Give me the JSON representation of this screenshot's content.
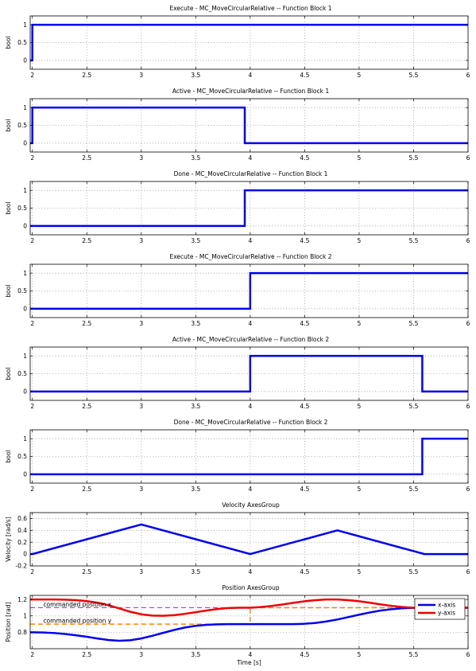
{
  "chart_data": [
    {
      "type": "line",
      "title": "Execute - MC_MoveCircularRelative -- Function Block 1",
      "ylabel": "bool",
      "xlabel": "",
      "xlim": [
        1.98,
        6
      ],
      "ylim": [
        -0.25,
        1.25
      ],
      "xticks": [
        2,
        2.5,
        3,
        3.5,
        4,
        4.5,
        5,
        5.5,
        6
      ],
      "xtick_labels": [
        "2",
        "2.5",
        "3",
        "3.5",
        "4",
        "4.5",
        "5",
        "5.5",
        "6"
      ],
      "yticks": [
        0,
        0.5,
        1
      ],
      "ytick_labels": [
        "0",
        "0.5",
        "1"
      ],
      "grid": true,
      "series": [
        {
          "color": "#0000ee",
          "width": 2.5,
          "x": [
            1.98,
            2.0,
            2.0,
            6.0
          ],
          "y": [
            0,
            0,
            1,
            1
          ]
        }
      ]
    },
    {
      "type": "line",
      "title": "Active - MC_MoveCircularRelative -- Function Block 1",
      "ylabel": "bool",
      "xlabel": "",
      "xlim": [
        1.98,
        6
      ],
      "ylim": [
        -0.25,
        1.25
      ],
      "xticks": [
        2,
        2.5,
        3,
        3.5,
        4,
        4.5,
        5,
        5.5,
        6
      ],
      "xtick_labels": [
        "2",
        "2.5",
        "3",
        "3.5",
        "4",
        "4.5",
        "5",
        "5.5",
        "6"
      ],
      "yticks": [
        0,
        0.5,
        1
      ],
      "ytick_labels": [
        "0",
        "0.5",
        "1"
      ],
      "grid": true,
      "series": [
        {
          "color": "#0000ee",
          "width": 2.5,
          "x": [
            1.98,
            2.0,
            2.0,
            3.95,
            3.95,
            6.0
          ],
          "y": [
            0,
            0,
            1,
            1,
            0,
            0
          ]
        }
      ]
    },
    {
      "type": "line",
      "title": "Done - MC_MoveCircularRelative -- Function Block 1",
      "ylabel": "bool",
      "xlabel": "",
      "xlim": [
        1.98,
        6
      ],
      "ylim": [
        -0.25,
        1.25
      ],
      "xticks": [
        2,
        2.5,
        3,
        3.5,
        4,
        4.5,
        5,
        5.5,
        6
      ],
      "xtick_labels": [
        "2",
        "2.5",
        "3",
        "3.5",
        "4",
        "4.5",
        "5",
        "5.5",
        "6"
      ],
      "yticks": [
        0,
        0.5,
        1
      ],
      "ytick_labels": [
        "0",
        "0.5",
        "1"
      ],
      "grid": true,
      "series": [
        {
          "color": "#0000ee",
          "width": 2.5,
          "x": [
            1.98,
            3.95,
            3.95,
            6.0
          ],
          "y": [
            0,
            0,
            1,
            1
          ]
        }
      ]
    },
    {
      "type": "line",
      "title": "Execute - MC_MoveCircularRelative -- Function Block 2",
      "ylabel": "bool",
      "xlabel": "",
      "xlim": [
        1.98,
        6
      ],
      "ylim": [
        -0.25,
        1.25
      ],
      "xticks": [
        2,
        2.5,
        3,
        3.5,
        4,
        4.5,
        5,
        5.5,
        6
      ],
      "xtick_labels": [
        "2",
        "2.5",
        "3",
        "3.5",
        "4",
        "4.5",
        "5",
        "5.5",
        "6"
      ],
      "yticks": [
        0,
        0.5,
        1
      ],
      "ytick_labels": [
        "0",
        "0.5",
        "1"
      ],
      "grid": true,
      "series": [
        {
          "color": "#0000ee",
          "width": 2.5,
          "x": [
            1.98,
            4.0,
            4.0,
            6.0
          ],
          "y": [
            0,
            0,
            1,
            1
          ]
        }
      ]
    },
    {
      "type": "line",
      "title": "Active - MC_MoveCircularRelative -- Function Block 2",
      "ylabel": "bool",
      "xlabel": "",
      "xlim": [
        1.98,
        6
      ],
      "ylim": [
        -0.25,
        1.25
      ],
      "xticks": [
        2,
        2.5,
        3,
        3.5,
        4,
        4.5,
        5,
        5.5,
        6
      ],
      "xtick_labels": [
        "2",
        "2.5",
        "3",
        "3.5",
        "4",
        "4.5",
        "5",
        "5.5",
        "6"
      ],
      "yticks": [
        0,
        0.5,
        1
      ],
      "ytick_labels": [
        "0",
        "0.5",
        "1"
      ],
      "grid": true,
      "series": [
        {
          "color": "#0000ee",
          "width": 2.5,
          "x": [
            1.98,
            4.0,
            4.0,
            5.58,
            5.58,
            6.0
          ],
          "y": [
            0,
            0,
            1,
            1,
            0,
            0
          ]
        }
      ]
    },
    {
      "type": "line",
      "title": "Done - MC_MoveCircularRelative -- Function Block 2",
      "ylabel": "bool",
      "xlabel": "",
      "xlim": [
        1.98,
        6
      ],
      "ylim": [
        -0.25,
        1.25
      ],
      "xticks": [
        2,
        2.5,
        3,
        3.5,
        4,
        4.5,
        5,
        5.5,
        6
      ],
      "xtick_labels": [
        "2",
        "2.5",
        "3",
        "3.5",
        "4",
        "4.5",
        "5",
        "5.5",
        "6"
      ],
      "yticks": [
        0,
        0.5,
        1
      ],
      "ytick_labels": [
        "0",
        "0.5",
        "1"
      ],
      "grid": true,
      "series": [
        {
          "color": "#0000ee",
          "width": 2.5,
          "x": [
            1.98,
            5.58,
            5.58,
            6.0
          ],
          "y": [
            0,
            0,
            1,
            1
          ]
        }
      ]
    },
    {
      "type": "line",
      "title": "Velocity AxesGroup",
      "ylabel": "Velocity [rad/s]",
      "xlabel": "",
      "xlim": [
        1.98,
        6
      ],
      "ylim": [
        -0.2,
        0.7
      ],
      "xticks": [
        2,
        2.5,
        3,
        3.5,
        4,
        4.5,
        5,
        5.5,
        6
      ],
      "xtick_labels": [
        "2",
        "2.5",
        "3",
        "3.5",
        "4",
        "4.5",
        "5",
        "5.5",
        "6"
      ],
      "yticks": [
        -0.2,
        0,
        0.2,
        0.4,
        0.6
      ],
      "ytick_labels": [
        "-0.2",
        "0",
        "0.2",
        "0.4",
        "0.6"
      ],
      "grid": true,
      "series": [
        {
          "color": "#0000ee",
          "width": 2.5,
          "x": [
            1.98,
            2.0,
            3.0,
            4.0,
            4.8,
            5.6,
            6.0
          ],
          "y": [
            0,
            0,
            0.5,
            0,
            0.4,
            0,
            0
          ]
        }
      ]
    },
    {
      "type": "line",
      "title": "Position AxesGroup",
      "ylabel": "Position [rad]",
      "xlabel": "Time [s]",
      "xlim": [
        1.98,
        6
      ],
      "ylim": [
        0.6,
        1.25
      ],
      "xticks": [
        2,
        2.5,
        3,
        3.5,
        4,
        4.5,
        5,
        5.5,
        6
      ],
      "xtick_labels": [
        "2",
        "2.5",
        "3",
        "3.5",
        "4",
        "4.5",
        "5",
        "5.5",
        "6"
      ],
      "yticks": [
        0.8,
        1,
        1.2
      ],
      "ytick_labels": [
        "0.8",
        "1",
        "1.2"
      ],
      "grid": true,
      "legend": {
        "placement": "top-right",
        "entries": [
          {
            "label": "x-axis",
            "color": "#0000ee"
          },
          {
            "label": "y-axis",
            "color": "#ee0000"
          }
        ]
      },
      "series": [
        {
          "name": "commanded position x",
          "color": "#dd22dd",
          "width": 1.2,
          "dash": "6,4",
          "x": [
            1.98,
            6.0
          ],
          "y": [
            1.1,
            1.1
          ]
        },
        {
          "name": "commanded position y",
          "color": "#ff8800",
          "width": 1.5,
          "dash": "6,4",
          "x": [
            1.98,
            4.0,
            4.0,
            6.0
          ],
          "y": [
            0.9,
            0.9,
            1.1,
            1.1
          ]
        },
        {
          "name": "x-axis",
          "color": "#0000ee",
          "width": 2.5,
          "x": [
            1.98,
            2.0,
            2.1,
            2.2,
            2.3,
            2.4,
            2.5,
            2.6,
            2.7,
            2.8,
            2.9,
            3.0,
            3.1,
            3.2,
            3.3,
            3.4,
            3.5,
            3.6,
            3.7,
            3.8,
            3.9,
            4.0,
            4.1,
            4.2,
            4.3,
            4.4,
            4.5,
            4.6,
            4.7,
            4.8,
            4.9,
            5.0,
            5.1,
            5.2,
            5.3,
            5.4,
            5.5,
            5.6,
            6.0
          ],
          "y": [
            0.8,
            0.8,
            0.798,
            0.791,
            0.78,
            0.764,
            0.745,
            0.724,
            0.706,
            0.697,
            0.703,
            0.725,
            0.757,
            0.793,
            0.828,
            0.858,
            0.879,
            0.891,
            0.897,
            0.9,
            0.9,
            0.9,
            0.9,
            0.9,
            0.9,
            0.9,
            0.904,
            0.914,
            0.932,
            0.956,
            0.985,
            1.015,
            1.042,
            1.066,
            1.082,
            1.093,
            1.098,
            1.1,
            1.1
          ]
        },
        {
          "name": "y-axis",
          "color": "#ee0000",
          "width": 2.5,
          "x": [
            1.98,
            2.0,
            2.1,
            2.2,
            2.3,
            2.4,
            2.5,
            2.6,
            2.7,
            2.8,
            2.9,
            3.0,
            3.1,
            3.2,
            3.3,
            3.4,
            3.5,
            3.6,
            3.7,
            3.8,
            3.9,
            4.0,
            4.1,
            4.2,
            4.3,
            4.4,
            4.5,
            4.6,
            4.7,
            4.8,
            4.9,
            5.0,
            5.1,
            5.2,
            5.3,
            5.4,
            5.5,
            5.6,
            6.0
          ],
          "y": [
            1.2,
            1.2,
            1.2,
            1.2,
            1.198,
            1.192,
            1.18,
            1.16,
            1.13,
            1.09,
            1.05,
            1.02,
            1.004,
            1.001,
            1.009,
            1.025,
            1.045,
            1.066,
            1.084,
            1.096,
            1.1,
            1.1,
            1.108,
            1.122,
            1.14,
            1.16,
            1.178,
            1.192,
            1.2,
            1.2,
            1.192,
            1.178,
            1.16,
            1.14,
            1.122,
            1.108,
            1.1,
            1.1,
            1.1
          ]
        }
      ],
      "annotations": [
        {
          "text": "commanded position x",
          "x": 2.1,
          "y": 1.115
        },
        {
          "text": "commanded position y",
          "x": 2.1,
          "y": 0.915
        }
      ]
    }
  ]
}
